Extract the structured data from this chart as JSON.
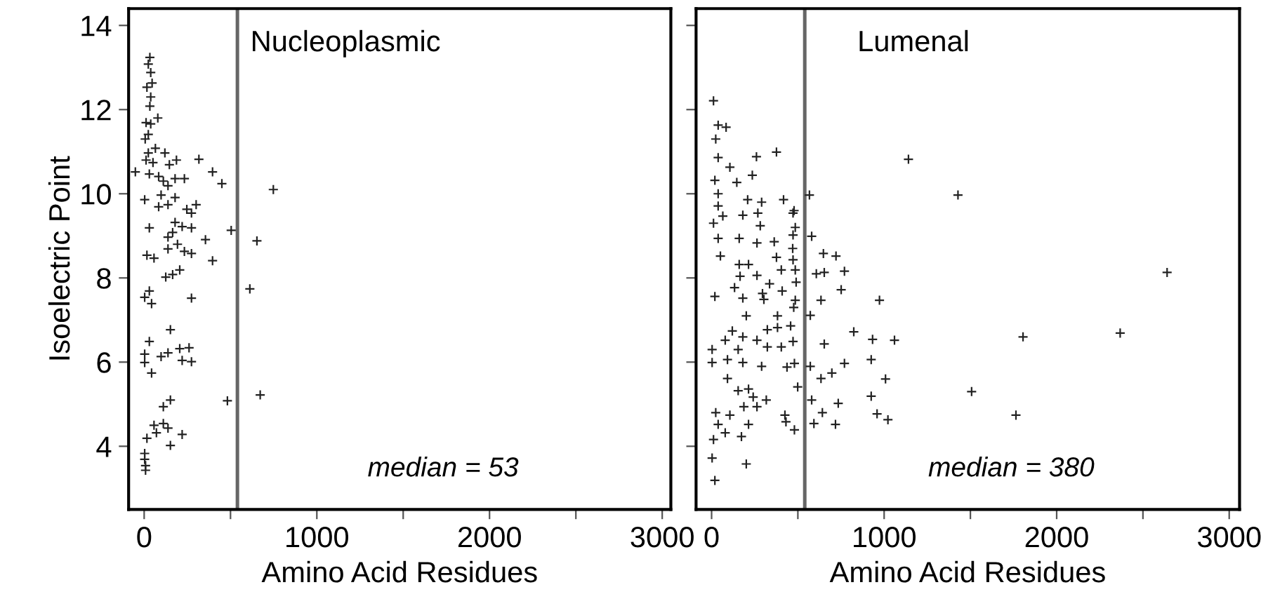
{
  "chart_data": [
    {
      "type": "scatter",
      "title": "Nucleoplasmic",
      "xlabel": "Amino Acid Residues",
      "ylabel": "Isoelectric Point",
      "annotations": [
        "median = 53"
      ],
      "marker": "cross",
      "grid": false,
      "xlim": [
        -90,
        3050
      ],
      "xticks": [
        0,
        {
          "value": 500,
          "label": null
        },
        1000,
        {
          "value": 1500,
          "label": null
        },
        2000,
        {
          "value": 2500,
          "label": null
        },
        3000
      ],
      "ylim": [
        2.5,
        14.4
      ],
      "yticks": [
        4,
        6,
        8,
        10,
        12,
        14
      ],
      "ref_lines": [
        {
          "axis": "x",
          "value": 540,
          "color": "#666666"
        }
      ],
      "series": [
        {
          "color": "#222222",
          "x": [
            33,
            24,
            38,
            16,
            46,
            38,
            33,
            11,
            38,
            79,
            24,
            6,
            65,
            120,
            24,
            11,
            51,
            187,
            317,
            146,
            -51,
            30,
            84,
            111,
            138,
            179,
            233,
            396,
            450,
            748,
            3,
            98,
            179,
            84,
            138,
            247,
            301,
            274,
            179,
            220,
            30,
            165,
            274,
            138,
            355,
            504,
            653,
            193,
            233,
            274,
            16,
            57,
            138,
            396,
            125,
            165,
            206,
            612,
            30,
            274,
            3,
            43,
            152,
            30,
            3,
            98,
            138,
            206,
            260,
            3,
            220,
            274,
            43,
            152,
            111,
            482,
            672,
            57,
            111,
            138,
            71,
            16,
            220,
            152,
            3,
            3,
            8,
            8
          ],
          "values": [
            13.24,
            13.08,
            12.88,
            12.53,
            12.63,
            12.3,
            12.08,
            11.69,
            11.66,
            11.8,
            11.41,
            11.3,
            11.08,
            10.97,
            10.97,
            10.8,
            10.74,
            10.8,
            10.82,
            10.69,
            10.52,
            10.47,
            10.41,
            10.3,
            10.19,
            10.36,
            10.36,
            10.52,
            10.24,
            10.1,
            9.86,
            9.97,
            9.91,
            9.69,
            9.74,
            9.63,
            9.74,
            9.54,
            9.32,
            9.22,
            9.19,
            9.08,
            9.19,
            8.97,
            8.91,
            9.13,
            8.88,
            8.8,
            8.63,
            8.58,
            8.54,
            8.47,
            8.69,
            8.41,
            8.02,
            8.08,
            8.19,
            7.74,
            7.69,
            7.52,
            7.54,
            7.39,
            6.77,
            6.49,
            6.19,
            6.13,
            6.22,
            6.32,
            6.34,
            5.99,
            6.04,
            6.01,
            5.74,
            5.1,
            4.94,
            5.08,
            5.22,
            4.5,
            4.54,
            4.43,
            4.32,
            4.19,
            4.28,
            4.02,
            3.83,
            3.69,
            3.54,
            3.43
          ]
        }
      ]
    },
    {
      "type": "scatter",
      "title": "Lumenal",
      "xlabel": "Amino Acid Residues",
      "annotations": [
        "median = 380"
      ],
      "marker": "cross",
      "grid": false,
      "tick_labels": "x",
      "xlim": [
        -90,
        3060
      ],
      "xticks": [
        0,
        {
          "value": 500,
          "label": null
        },
        1000,
        {
          "value": 1500,
          "label": null
        },
        2000,
        {
          "value": 2500,
          "label": null
        },
        3000
      ],
      "ylim": [
        2.5,
        14.4
      ],
      "yticks": [
        4,
        6,
        8,
        10,
        12,
        14
      ],
      "ref_lines": [
        {
          "axis": "x",
          "value": 540,
          "color": "#666666"
        }
      ],
      "series": [
        {
          "color": "#222222",
          "x": [
            11,
            38,
            84,
            24,
            38,
            260,
            376,
            1141,
            106,
            19,
            236,
            146,
            38,
            567,
            1428,
            38,
            209,
            290,
            417,
            65,
            181,
            268,
            472,
            11,
            282,
            38,
            160,
            263,
            363,
            472,
            580,
            51,
            160,
            214,
            376,
            472,
            648,
            721,
            165,
            263,
            336,
            404,
            485,
            607,
            653,
            770,
            2640,
            133,
            295,
            409,
            751,
            19,
            181,
            303,
            485,
            634,
            973,
            201,
            382,
            572,
            323,
            382,
            458,
            824,
            120,
            79,
            181,
            263,
            472,
            653,
            933,
            1060,
            1805,
            2368,
            3,
            154,
            323,
            404,
            3,
            92,
            181,
            290,
            437,
            480,
            572,
            697,
            770,
            925,
            92,
            634,
            1008,
            499,
            154,
            214,
            1507,
            241,
            317,
            580,
            734,
            925,
            24,
            106,
            187,
            263,
            425,
            642,
            959,
            1022,
            1764,
            38,
            214,
            431,
            593,
            718,
            79,
            173,
            480,
            11,
            3,
            201,
            19,
            478,
            485,
            470,
            490,
            476
          ],
          "values": [
            12.21,
            11.63,
            11.58,
            11.3,
            10.86,
            10.88,
            10.99,
            10.82,
            10.63,
            10.32,
            10.44,
            10.27,
            10.0,
            9.97,
            9.97,
            9.71,
            9.86,
            9.8,
            9.86,
            9.47,
            9.49,
            9.54,
            9.54,
            9.3,
            9.24,
            8.94,
            8.94,
            8.83,
            8.86,
            9.02,
            8.99,
            8.52,
            8.32,
            8.32,
            8.49,
            8.43,
            8.58,
            8.52,
            8.04,
            8.06,
            7.86,
            8.19,
            8.19,
            8.1,
            8.13,
            8.16,
            8.13,
            7.77,
            7.63,
            7.69,
            7.72,
            7.56,
            7.52,
            7.49,
            7.47,
            7.47,
            7.47,
            7.1,
            7.1,
            7.11,
            6.77,
            6.82,
            6.86,
            6.72,
            6.74,
            6.52,
            6.6,
            6.52,
            6.49,
            6.43,
            6.54,
            6.52,
            6.6,
            6.69,
            6.3,
            6.3,
            6.36,
            6.36,
            5.99,
            6.06,
            5.99,
            5.9,
            5.88,
            5.97,
            5.9,
            5.74,
            5.97,
            6.06,
            5.61,
            5.61,
            5.6,
            5.41,
            5.32,
            5.36,
            5.3,
            5.17,
            5.1,
            5.1,
            5.02,
            5.19,
            4.8,
            4.74,
            4.94,
            4.94,
            4.74,
            4.8,
            4.77,
            4.63,
            4.74,
            4.52,
            4.52,
            4.58,
            4.54,
            4.52,
            4.32,
            4.23,
            4.39,
            4.16,
            3.72,
            3.58,
            3.19,
            9.6,
            9.2,
            8.7,
            7.9,
            7.3
          ]
        }
      ]
    }
  ]
}
